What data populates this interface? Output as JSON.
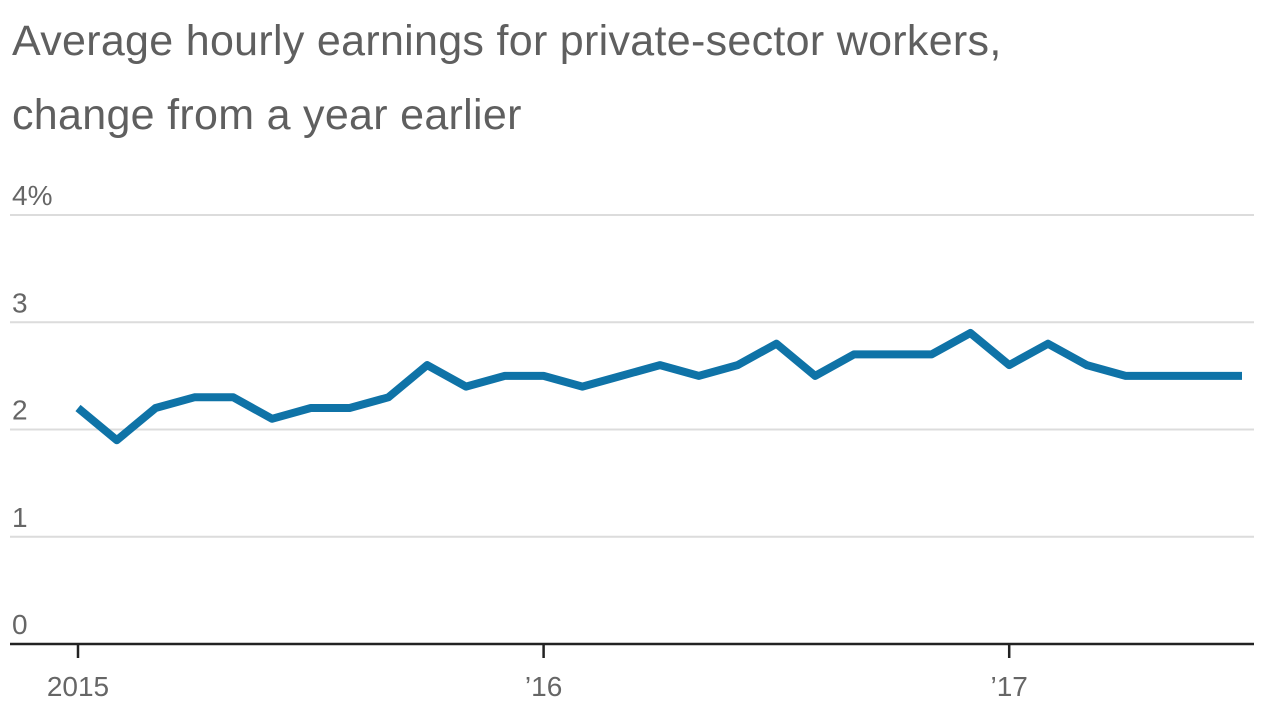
{
  "chart_data": {
    "type": "line",
    "title_lines": [
      "Average hourly earnings for private-sector workers,",
      "change from a year earlier"
    ],
    "y_unit_suffix": "%",
    "ylim": [
      0,
      4
    ],
    "y_ticks": [
      {
        "value": 0,
        "label": "0"
      },
      {
        "value": 1,
        "label": "1"
      },
      {
        "value": 2,
        "label": "2"
      },
      {
        "value": 3,
        "label": "3"
      },
      {
        "value": 4,
        "label": "4%"
      }
    ],
    "x_ticks": [
      {
        "value": "2015-01",
        "label": "2015"
      },
      {
        "value": "2016-01",
        "label": "’16"
      },
      {
        "value": "2017-01",
        "label": "’17"
      }
    ],
    "grid": true,
    "series": [
      {
        "color": "#0f73a7",
        "x": [
          "2015-01",
          "2015-02",
          "2015-03",
          "2015-04",
          "2015-05",
          "2015-06",
          "2015-07",
          "2015-08",
          "2015-09",
          "2015-10",
          "2015-11",
          "2015-12",
          "2016-01",
          "2016-02",
          "2016-03",
          "2016-04",
          "2016-05",
          "2016-06",
          "2016-07",
          "2016-08",
          "2016-09",
          "2016-10",
          "2016-11",
          "2016-12",
          "2017-01",
          "2017-02",
          "2017-03",
          "2017-04",
          "2017-05",
          "2017-06",
          "2017-07"
        ],
        "values": [
          2.2,
          1.9,
          2.2,
          2.3,
          2.3,
          2.1,
          2.2,
          2.2,
          2.3,
          2.6,
          2.4,
          2.5,
          2.5,
          2.4,
          2.5,
          2.6,
          2.5,
          2.6,
          2.8,
          2.5,
          2.7,
          2.7,
          2.7,
          2.9,
          2.6,
          2.8,
          2.6,
          2.5,
          2.5,
          2.5,
          2.5
        ]
      }
    ]
  }
}
